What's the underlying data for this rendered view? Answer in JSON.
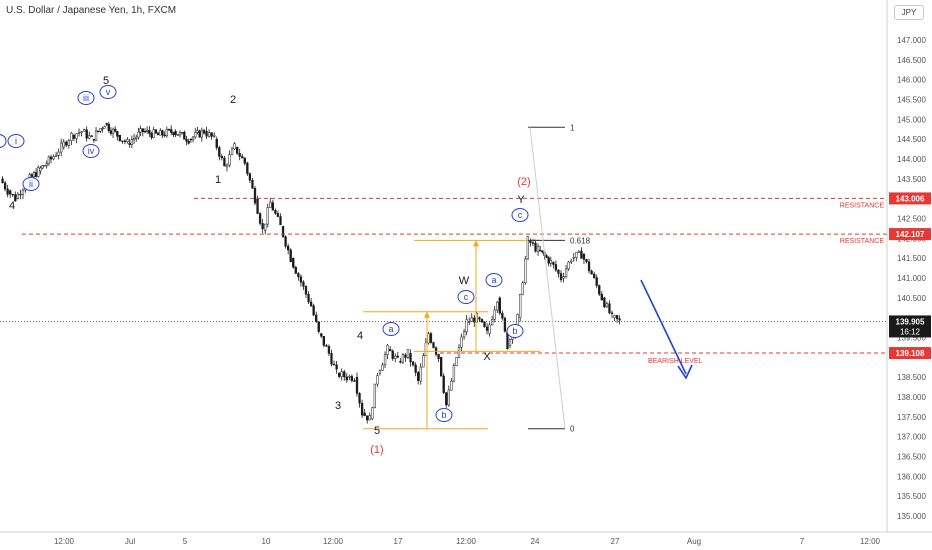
{
  "header": {
    "title": "U.S. Dollar / Japanese Yen, 1h, FXCM",
    "currency": "JPY"
  },
  "colors": {
    "candle": "#1a1a1a",
    "resistance": "#e53935",
    "fib": "#f5a623",
    "wave_blue": "#2f3fc6",
    "arrow": "#1f45d6",
    "axis_text": "#555555"
  },
  "chart_data": {
    "type": "candlestick",
    "title": "U.S. Dollar / Japanese Yen, 1h, FXCM",
    "ylim": [
      134.75,
      147.25
    ],
    "y_ticks": [
      "147.000",
      "146.500",
      "146.000",
      "145.500",
      "145.000",
      "144.500",
      "144.000",
      "143.500",
      "142.500",
      "142.000",
      "141.500",
      "141.000",
      "140.500",
      "139.500",
      "138.500",
      "138.000",
      "137.500",
      "137.000",
      "136.500",
      "136.000",
      "135.500",
      "135.000"
    ],
    "x_ticks": [
      "12:00",
      "Jul",
      "5",
      "10",
      "12:00",
      "17",
      "12:00",
      "24",
      "27",
      "Aug",
      "7",
      "12:00"
    ],
    "price_path": [
      [
        0.0,
        143.5
      ],
      [
        0.3,
        143.2
      ],
      [
        0.6,
        143.0
      ],
      [
        1.0,
        143.4
      ],
      [
        1.5,
        143.7
      ],
      [
        2.0,
        144.0
      ],
      [
        2.4,
        144.3
      ],
      [
        2.8,
        144.6
      ],
      [
        3.2,
        144.7
      ],
      [
        3.6,
        144.5
      ],
      [
        4.1,
        144.9
      ],
      [
        4.6,
        144.6
      ],
      [
        5.0,
        144.4
      ],
      [
        5.6,
        144.7
      ],
      [
        6.2,
        144.6
      ],
      [
        6.8,
        144.7
      ],
      [
        7.4,
        144.5
      ],
      [
        8.0,
        144.7
      ],
      [
        8.4,
        144.5
      ],
      [
        8.8,
        143.8
      ],
      [
        9.2,
        144.3
      ],
      [
        9.6,
        143.9
      ],
      [
        10.0,
        143.0
      ],
      [
        10.3,
        142.2
      ],
      [
        10.6,
        142.9
      ],
      [
        11.0,
        142.3
      ],
      [
        11.4,
        141.5
      ],
      [
        11.8,
        140.9
      ],
      [
        12.2,
        140.3
      ],
      [
        12.5,
        139.6
      ],
      [
        12.9,
        139.1
      ],
      [
        13.2,
        138.6
      ],
      [
        13.6,
        138.5
      ],
      [
        13.9,
        138.5
      ],
      [
        14.2,
        137.6
      ],
      [
        14.5,
        137.45
      ],
      [
        14.8,
        138.6
      ],
      [
        15.2,
        139.2
      ],
      [
        15.6,
        138.9
      ],
      [
        16.0,
        139.1
      ],
      [
        16.4,
        138.4
      ],
      [
        16.8,
        139.6
      ],
      [
        17.2,
        139.0
      ],
      [
        17.5,
        137.8
      ],
      [
        17.9,
        139.0
      ],
      [
        18.3,
        139.9
      ],
      [
        18.7,
        140.0
      ],
      [
        19.1,
        139.6
      ],
      [
        19.5,
        140.5
      ],
      [
        19.9,
        139.3
      ],
      [
        20.3,
        140.0
      ],
      [
        20.7,
        141.95
      ],
      [
        21.1,
        141.7
      ],
      [
        21.6,
        141.4
      ],
      [
        22.0,
        141.0
      ],
      [
        22.4,
        141.5
      ],
      [
        22.8,
        141.6
      ],
      [
        23.2,
        141.1
      ],
      [
        23.6,
        140.5
      ],
      [
        24.0,
        140.0
      ],
      [
        24.3,
        139.9
      ]
    ],
    "resistance_levels": [
      {
        "price": 143.006,
        "label": "RESISTANCE",
        "price_label": "143.006"
      },
      {
        "price": 142.107,
        "label": "RESISTANCE",
        "price_label": "142.107"
      }
    ],
    "bearish_level": {
      "price": 139.108,
      "label": "BEARISH LEVEL",
      "price_label": "139.108"
    },
    "current_price": {
      "price": 139.905,
      "label": "139.905",
      "countdown": "16:12"
    },
    "fibonacci": {
      "high": 144.8,
      "low": 137.2,
      "labels": [
        "1",
        "0.618",
        "0"
      ]
    },
    "wave_labels": [
      {
        "text": "i",
        "x": 16,
        "y": 142,
        "circled": true
      },
      {
        "text": "ii",
        "x": 31,
        "y": 185,
        "circled": true
      },
      {
        "text": "4",
        "x": 12,
        "y": 205,
        "circled": false
      },
      {
        "text": "iii",
        "x": 86,
        "y": 99,
        "circled": true
      },
      {
        "text": "iv",
        "x": 91,
        "y": 152,
        "circled": true
      },
      {
        "text": "v",
        "x": 108,
        "y": 93,
        "circled": true
      },
      {
        "text": "5",
        "x": 106,
        "y": 80,
        "circled": false
      },
      {
        "text": "2",
        "x": 233,
        "y": 99,
        "circled": false
      },
      {
        "text": "1",
        "x": 218,
        "y": 179,
        "circled": false
      },
      {
        "text": "4",
        "x": 360,
        "y": 335,
        "circled": false
      },
      {
        "text": "3",
        "x": 338,
        "y": 405,
        "circled": false
      },
      {
        "text": "5",
        "x": 377,
        "y": 430,
        "circled": false
      },
      {
        "text": "(1)",
        "x": 377,
        "y": 449,
        "circled": false,
        "red": true
      },
      {
        "text": "a",
        "x": 391,
        "y": 330,
        "circled": true
      },
      {
        "text": "b",
        "x": 444,
        "y": 416,
        "circled": true
      },
      {
        "text": "c",
        "x": 466,
        "y": 298,
        "circled": true
      },
      {
        "text": "W",
        "x": 464,
        "y": 280,
        "circled": false
      },
      {
        "text": "X",
        "x": 487,
        "y": 356,
        "circled": false
      },
      {
        "text": "a",
        "x": 494,
        "y": 281,
        "circled": true
      },
      {
        "text": "b",
        "x": 515,
        "y": 332,
        "circled": true
      },
      {
        "text": "c",
        "x": 520,
        "y": 216,
        "circled": true
      },
      {
        "text": "Y",
        "x": 521,
        "y": 199,
        "circled": false
      },
      {
        "text": "(2)",
        "x": 524,
        "y": 181,
        "circled": false,
        "red": true
      }
    ]
  }
}
